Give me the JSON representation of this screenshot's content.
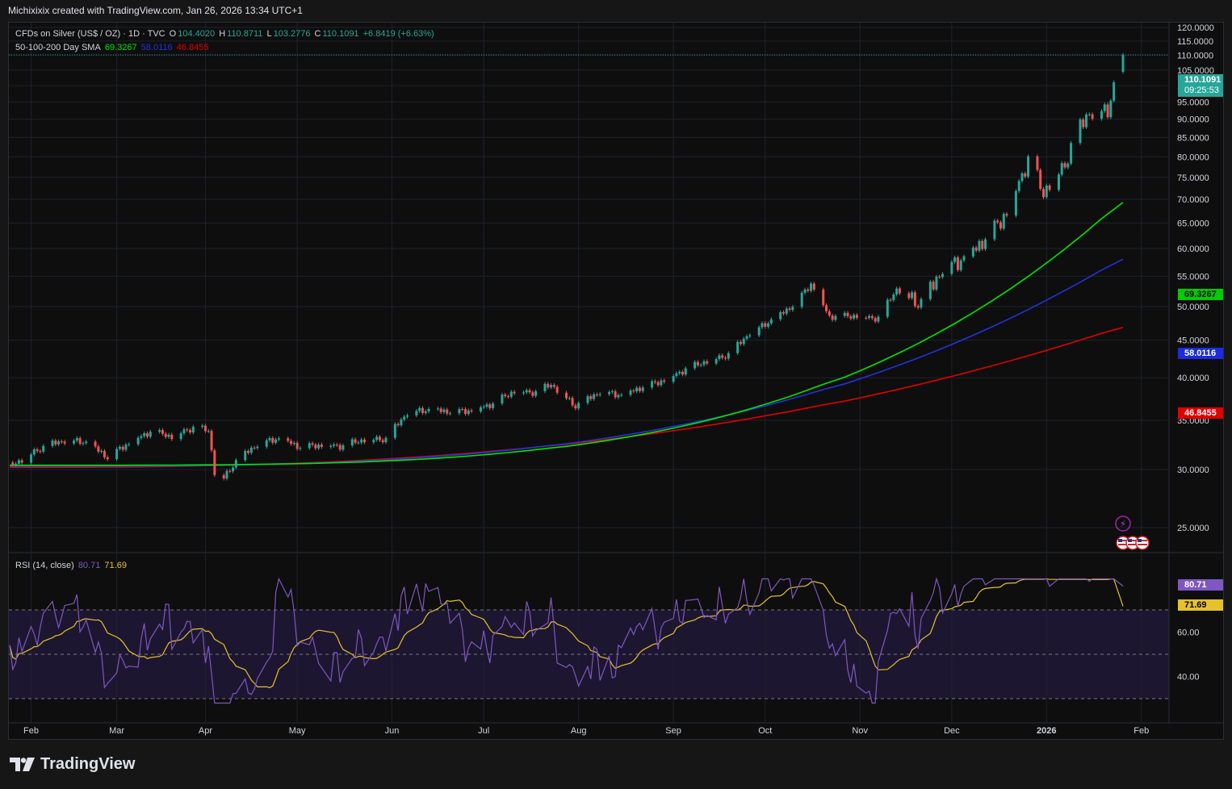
{
  "header": {
    "attribution": "Michixixix created with TradingView.com, Jan 26, 2026 13:34 UTC+1"
  },
  "legend": {
    "symbol": "CFDs on Silver (US$ / OZ) · 1D · TVC",
    "o_label": "O",
    "o": "104.4020",
    "h_label": "H",
    "h": "110.8711",
    "l_label": "L",
    "l": "103.2776",
    "c_label": "C",
    "c": "110.1091",
    "change": "+6.8419 (+6.63%)",
    "sma_label": "50-100-200 Day SMA",
    "sma50": "69.3267",
    "sma100": "58.0116",
    "sma200": "46.8455"
  },
  "rsi_legend": {
    "label": "RSI (14, close)",
    "rsi": "80.71",
    "ma": "71.69"
  },
  "price_tags": {
    "last": "110.1091",
    "countdown": "09:25:53",
    "sma50": "69.3267",
    "sma100": "58.0116",
    "sma200": "46.8455"
  },
  "rsi_tags": {
    "rsi": "80.71",
    "ma": "71.69"
  },
  "colors": {
    "up": "#26a69a",
    "down": "#ef5350",
    "sma50": "#00e600",
    "sma100": "#2233dd",
    "sma200": "#e00000",
    "rsi": "#7e57c2",
    "rsi_ma": "#e6c229",
    "background": "#0e0e0e"
  },
  "icons": [
    "lightning-event-icon",
    "us-flag-icon"
  ],
  "chart_data": {
    "type": "candlestick",
    "title": "CFDs on Silver (US$ / OZ) · 1D · TVC",
    "x_ticks": [
      "Feb",
      "Mar",
      "Apr",
      "May",
      "Jun",
      "Jul",
      "Aug",
      "Sep",
      "Oct",
      "Nov",
      "Dec",
      "2026",
      "Feb"
    ],
    "price_axis": {
      "ticks": [
        "120.0000",
        "115.0000",
        "110.0000",
        "105.0000",
        "100.0000",
        "95.0000",
        "90.0000",
        "85.0000",
        "80.0000",
        "75.0000",
        "70.0000",
        "65.0000",
        "60.0000",
        "55.0000",
        "50.0000",
        "45.0000",
        "40.0000",
        "35.0000",
        "30.0000",
        "25.0000"
      ]
    },
    "rsi_axis": {
      "ticks": [
        "60.00",
        "40.00"
      ],
      "bands": [
        70,
        50,
        30
      ]
    },
    "close_points": [
      [
        "2025-01-27",
        30.3
      ],
      [
        "2025-02-07",
        32.2
      ],
      [
        "2025-02-14",
        32.9
      ],
      [
        "2025-02-21",
        32.7
      ],
      [
        "2025-02-28",
        31.2
      ],
      [
        "2025-03-07",
        32.6
      ],
      [
        "2025-03-14",
        33.8
      ],
      [
        "2025-03-21",
        33.3
      ],
      [
        "2025-03-28",
        34.2
      ],
      [
        "2025-04-02",
        33.9
      ],
      [
        "2025-04-04",
        29.8
      ],
      [
        "2025-04-07",
        29.2
      ],
      [
        "2025-04-11",
        30.8
      ],
      [
        "2025-04-18",
        32.5
      ],
      [
        "2025-04-25",
        33.1
      ],
      [
        "2025-05-02",
        32.2
      ],
      [
        "2025-05-09",
        32.4
      ],
      [
        "2025-05-16",
        32.3
      ],
      [
        "2025-05-23",
        33.0
      ],
      [
        "2025-05-30",
        33.0
      ],
      [
        "2025-06-06",
        35.9
      ],
      [
        "2025-06-13",
        36.2
      ],
      [
        "2025-06-20",
        36.0
      ],
      [
        "2025-06-27",
        36.1
      ],
      [
        "2025-07-04",
        36.9
      ],
      [
        "2025-07-11",
        38.4
      ],
      [
        "2025-07-18",
        38.2
      ],
      [
        "2025-07-23",
        39.2
      ],
      [
        "2025-07-31",
        36.6
      ],
      [
        "2025-08-08",
        38.3
      ],
      [
        "2025-08-15",
        37.9
      ],
      [
        "2025-08-22",
        38.9
      ],
      [
        "2025-08-29",
        39.7
      ],
      [
        "2025-09-05",
        41.1
      ],
      [
        "2025-09-12",
        42.2
      ],
      [
        "2025-09-19",
        43.0
      ],
      [
        "2025-09-26",
        46.1
      ],
      [
        "2025-10-03",
        47.9
      ],
      [
        "2025-10-10",
        50.2
      ],
      [
        "2025-10-16",
        53.7
      ],
      [
        "2025-10-22",
        48.5
      ],
      [
        "2025-10-31",
        48.6
      ],
      [
        "2025-11-07",
        48.2
      ],
      [
        "2025-11-13",
        52.9
      ],
      [
        "2025-11-21",
        50.5
      ],
      [
        "2025-11-28",
        56.4
      ],
      [
        "2025-12-05",
        58.3
      ],
      [
        "2025-12-12",
        62.0
      ],
      [
        "2025-12-19",
        67.2
      ],
      [
        "2025-12-26",
        79.3
      ],
      [
        "2025-12-31",
        71.7
      ],
      [
        "2026-01-07",
        78.4
      ],
      [
        "2026-01-14",
        91.6
      ],
      [
        "2026-01-21",
        93.0
      ],
      [
        "2026-01-26",
        110.1
      ]
    ],
    "sma50_last": 69.3267,
    "sma100_last": 58.0116,
    "sma200_last": 46.8455,
    "rsi_last": 80.71,
    "rsi_ma_last": 71.69
  }
}
